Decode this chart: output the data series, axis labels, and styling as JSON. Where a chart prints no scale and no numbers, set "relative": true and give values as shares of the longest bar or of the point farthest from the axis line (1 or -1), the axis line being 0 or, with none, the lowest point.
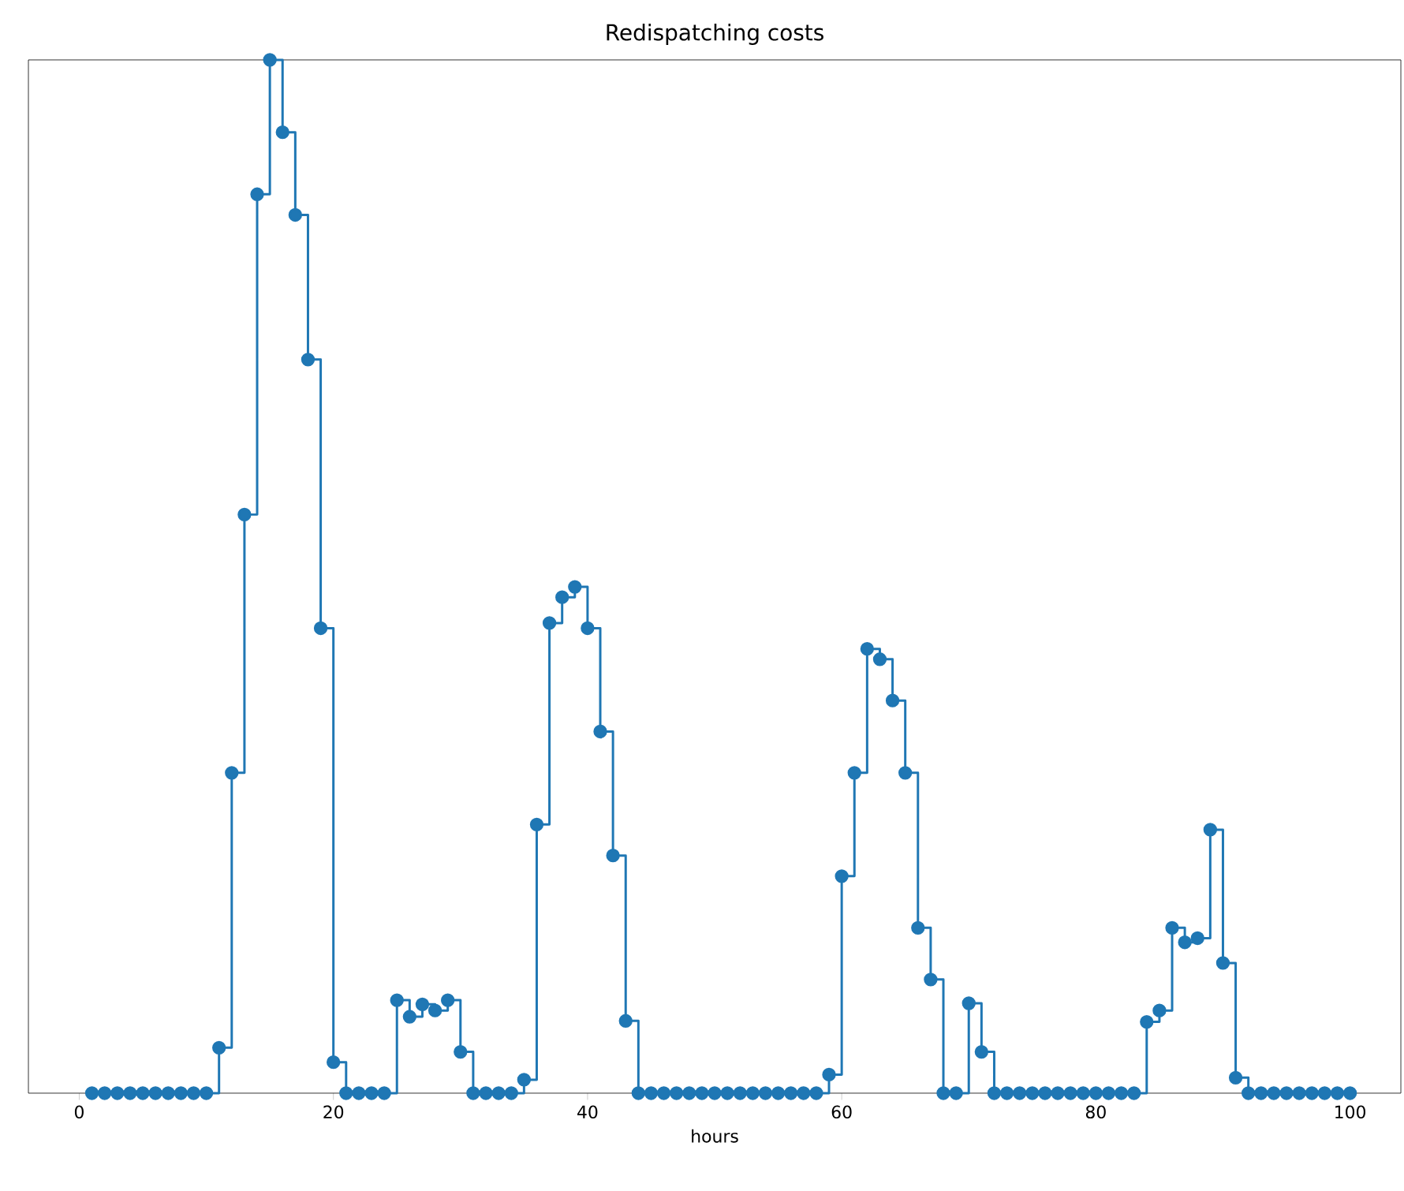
{
  "chart_data": {
    "type": "step",
    "title": "Redispatching costs",
    "xlabel": "hours",
    "relative": true,
    "marker": "circle",
    "xlim": [
      -4,
      104
    ],
    "xticks": [
      0,
      20,
      40,
      60,
      80,
      100
    ],
    "x": [
      1,
      2,
      3,
      4,
      5,
      6,
      7,
      8,
      9,
      10,
      11,
      12,
      13,
      14,
      15,
      16,
      17,
      18,
      19,
      20,
      21,
      22,
      23,
      24,
      25,
      26,
      27,
      28,
      29,
      30,
      31,
      32,
      33,
      34,
      35,
      36,
      37,
      38,
      39,
      40,
      41,
      42,
      43,
      44,
      45,
      46,
      47,
      48,
      49,
      50,
      51,
      52,
      53,
      54,
      55,
      56,
      57,
      58,
      59,
      60,
      61,
      62,
      63,
      64,
      65,
      66,
      67,
      68,
      69,
      70,
      71,
      72,
      73,
      74,
      75,
      76,
      77,
      78,
      79,
      80,
      81,
      82,
      83,
      84,
      85,
      86,
      87,
      88,
      89,
      90,
      91,
      92,
      93,
      94,
      95,
      96,
      97,
      98,
      99,
      100
    ],
    "series": [
      {
        "color": "#1f77b4",
        "values": [
          0,
          0,
          0,
          0,
          0,
          0,
          0,
          0,
          0,
          0,
          0.044,
          0.31,
          0.56,
          0.87,
          1,
          0.93,
          0.85,
          0.71,
          0.45,
          0.03,
          0,
          0,
          0,
          0,
          0.09,
          0.074,
          0.086,
          0.08,
          0.09,
          0.04,
          0,
          0,
          0,
          0,
          0.013,
          0.26,
          0.455,
          0.48,
          0.49,
          0.45,
          0.35,
          0.23,
          0.07,
          0,
          0,
          0,
          0,
          0,
          0,
          0,
          0,
          0,
          0,
          0,
          0,
          0,
          0,
          0,
          0.018,
          0.21,
          0.31,
          0.43,
          0.42,
          0.38,
          0.31,
          0.16,
          0.11,
          0,
          0,
          0.087,
          0.04,
          0,
          0,
          0,
          0,
          0,
          0,
          0,
          0,
          0,
          0,
          0,
          0,
          0.069,
          0.08,
          0.16,
          0.146,
          0.15,
          0.255,
          0.126,
          0.015,
          0,
          0,
          0,
          0,
          0,
          0,
          0,
          0,
          0
        ]
      }
    ]
  }
}
